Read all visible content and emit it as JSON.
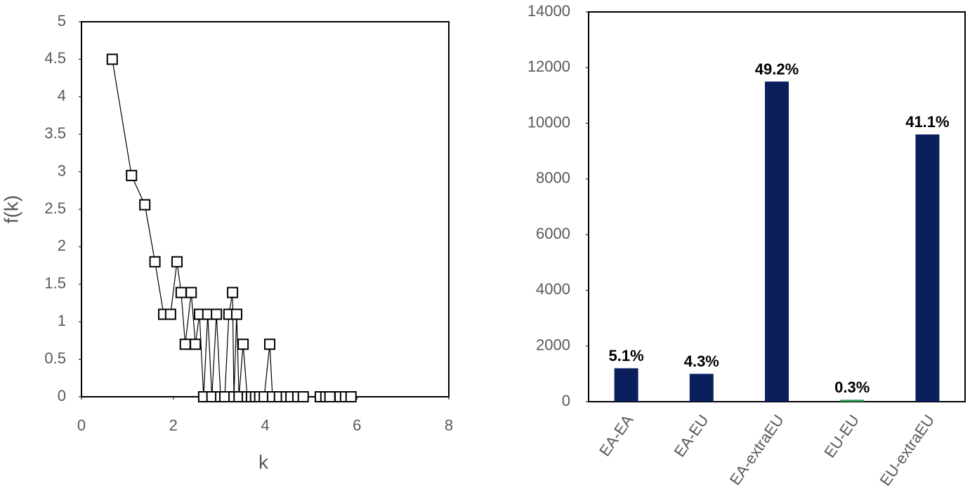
{
  "chart_data": [
    {
      "type": "line",
      "x_label": "k",
      "y_label": "f(k)",
      "x": [
        0.67,
        1.09,
        1.38,
        1.6,
        1.79,
        1.94,
        2.08,
        2.17,
        2.26,
        2.39,
        2.48,
        2.57,
        2.66,
        2.75,
        2.84,
        2.94,
        3.03,
        3.12,
        3.21,
        3.29,
        3.32,
        3.38,
        3.43,
        3.52,
        3.61,
        3.7,
        3.79,
        3.88,
        3.98,
        4.1,
        4.16,
        4.31,
        4.46,
        4.56,
        4.71,
        4.83,
        5.2,
        5.32,
        5.41,
        5.63,
        5.75,
        5.87
      ],
      "values": [
        4.5,
        2.95,
        2.56,
        1.8,
        1.1,
        1.1,
        1.8,
        1.39,
        0.7,
        1.39,
        0.7,
        1.1,
        0,
        1.1,
        0,
        1.1,
        0,
        0,
        1.1,
        1.39,
        0,
        1.1,
        0,
        0.7,
        0,
        0,
        0,
        0,
        0,
        0.7,
        0,
        0,
        0,
        0,
        0,
        0,
        0,
        0,
        0,
        0,
        0,
        0
      ],
      "color": "#000000",
      "marker": "square",
      "xlim": [
        0,
        8
      ],
      "xticks": [
        0,
        2,
        4,
        6,
        8
      ],
      "ylim": [
        0,
        5
      ],
      "yticks": [
        0,
        0.5,
        1,
        1.5,
        2,
        2.5,
        3,
        3.5,
        4,
        4.5,
        5
      ]
    },
    {
      "type": "bar",
      "categories": [
        "EA-EA",
        "EA-EU",
        "EA-extraEU",
        "EU-EU",
        "EU-extraEU"
      ],
      "values": [
        1200,
        1000,
        11500,
        70,
        9600
      ],
      "value_labels": [
        "5.1%",
        "4.3%",
        "49.2%",
        "0.3%",
        "41.1%"
      ],
      "colors": [
        "#0a1f5c",
        "#0a1f5c",
        "#0a1f5c",
        "#2e9e5a",
        "#0a1f5c"
      ],
      "ylim": [
        0,
        14000
      ],
      "yticks": [
        0,
        2000,
        4000,
        6000,
        8000,
        10000,
        12000,
        14000
      ]
    }
  ]
}
